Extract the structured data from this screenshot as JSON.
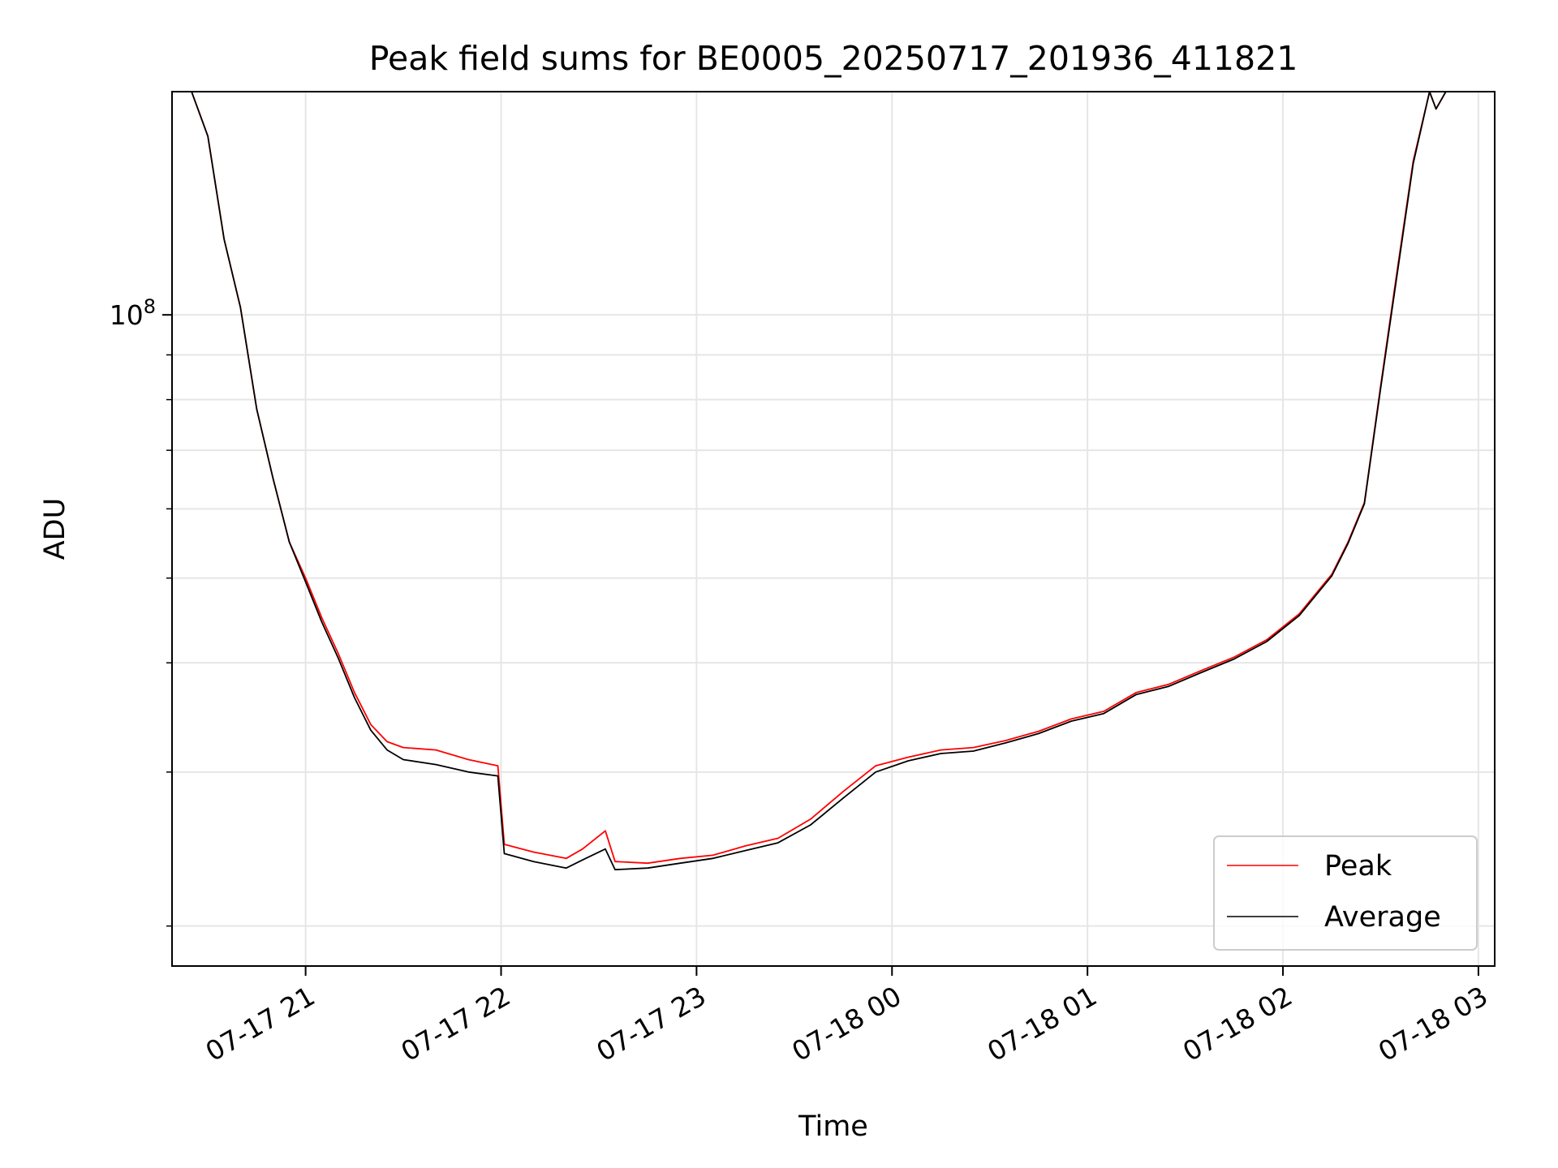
{
  "chart_data": {
    "type": "line",
    "title": "Peak field sums for BE0005_20250717_201936_411821",
    "xlabel": "Time",
    "ylabel": "ADU",
    "yscale": "log",
    "ylim": [
      18000000,
      180000000
    ],
    "yticks_major": [
      {
        "value": 100000000,
        "base": "10",
        "exp": "8"
      }
    ],
    "xlim": [
      "2025-07-17 20:19",
      "2025-07-18 03:05"
    ],
    "xticks": [
      {
        "value": "2025-07-17 21:00",
        "label": "07-17 21"
      },
      {
        "value": "2025-07-17 22:00",
        "label": "07-17 22"
      },
      {
        "value": "2025-07-17 23:00",
        "label": "07-17 23"
      },
      {
        "value": "2025-07-18 00:00",
        "label": "07-18 00"
      },
      {
        "value": "2025-07-18 01:00",
        "label": "07-18 01"
      },
      {
        "value": "2025-07-18 02:00",
        "label": "07-18 02"
      },
      {
        "value": "2025-07-18 03:00",
        "label": "07-18 03"
      }
    ],
    "grid": true,
    "legend_position": "lower-right",
    "series": [
      {
        "name": "Peak",
        "color": "#ff0000",
        "points": [
          [
            "2025-07-17 20:19",
            180000000
          ],
          [
            "2025-07-17 20:25",
            180000000
          ],
          [
            "2025-07-17 20:30",
            160000000
          ],
          [
            "2025-07-17 20:35",
            122000000
          ],
          [
            "2025-07-17 20:40",
            102000000
          ],
          [
            "2025-07-17 20:45",
            78000000
          ],
          [
            "2025-07-17 20:50",
            65000000
          ],
          [
            "2025-07-17 20:55",
            55000000
          ],
          [
            "2025-07-17 21:00",
            50000000
          ],
          [
            "2025-07-17 21:05",
            45000000
          ],
          [
            "2025-07-17 21:10",
            41000000
          ],
          [
            "2025-07-17 21:15",
            37000000
          ],
          [
            "2025-07-17 21:20",
            34000000
          ],
          [
            "2025-07-17 21:25",
            32500000
          ],
          [
            "2025-07-17 21:30",
            32000000
          ],
          [
            "2025-07-17 21:40",
            31800000
          ],
          [
            "2025-07-17 21:50",
            31000000
          ],
          [
            "2025-07-17 21:59",
            30500000
          ],
          [
            "2025-07-17 22:01",
            24800000
          ],
          [
            "2025-07-17 22:10",
            24300000
          ],
          [
            "2025-07-17 22:20",
            23900000
          ],
          [
            "2025-07-17 22:25",
            24500000
          ],
          [
            "2025-07-17 22:32",
            25700000
          ],
          [
            "2025-07-17 22:35",
            23700000
          ],
          [
            "2025-07-17 22:45",
            23600000
          ],
          [
            "2025-07-17 22:55",
            23900000
          ],
          [
            "2025-07-17 23:05",
            24100000
          ],
          [
            "2025-07-17 23:15",
            24700000
          ],
          [
            "2025-07-17 23:25",
            25200000
          ],
          [
            "2025-07-17 23:35",
            26500000
          ],
          [
            "2025-07-17 23:45",
            28500000
          ],
          [
            "2025-07-17 23:55",
            30500000
          ],
          [
            "2025-07-18 00:05",
            31200000
          ],
          [
            "2025-07-18 00:15",
            31800000
          ],
          [
            "2025-07-18 00:25",
            32000000
          ],
          [
            "2025-07-18 00:35",
            32600000
          ],
          [
            "2025-07-18 00:45",
            33400000
          ],
          [
            "2025-07-18 00:55",
            34500000
          ],
          [
            "2025-07-18 01:05",
            35200000
          ],
          [
            "2025-07-18 01:15",
            37000000
          ],
          [
            "2025-07-18 01:25",
            37800000
          ],
          [
            "2025-07-18 01:35",
            39200000
          ],
          [
            "2025-07-18 01:45",
            40600000
          ],
          [
            "2025-07-18 01:55",
            42500000
          ],
          [
            "2025-07-18 02:05",
            45500000
          ],
          [
            "2025-07-18 02:15",
            50500000
          ],
          [
            "2025-07-18 02:20",
            55000000
          ],
          [
            "2025-07-18 02:25",
            61000000
          ],
          [
            "2025-07-18 02:30",
            83000000
          ],
          [
            "2025-07-18 02:35",
            112000000
          ],
          [
            "2025-07-18 02:40",
            150000000
          ],
          [
            "2025-07-18 02:45",
            180000000
          ],
          [
            "2025-07-18 02:47",
            172000000
          ],
          [
            "2025-07-18 02:50",
            180000000
          ],
          [
            "2025-07-18 03:05",
            180000000
          ]
        ]
      },
      {
        "name": "Average",
        "color": "#000000",
        "points": [
          [
            "2025-07-17 20:19",
            180000000
          ],
          [
            "2025-07-17 20:25",
            180000000
          ],
          [
            "2025-07-17 20:30",
            160000000
          ],
          [
            "2025-07-17 20:35",
            122000000
          ],
          [
            "2025-07-17 20:40",
            102000000
          ],
          [
            "2025-07-17 20:45",
            78000000
          ],
          [
            "2025-07-17 20:50",
            65000000
          ],
          [
            "2025-07-17 20:55",
            55000000
          ],
          [
            "2025-07-17 21:00",
            49500000
          ],
          [
            "2025-07-17 21:05",
            44500000
          ],
          [
            "2025-07-17 21:10",
            40500000
          ],
          [
            "2025-07-17 21:15",
            36500000
          ],
          [
            "2025-07-17 21:20",
            33500000
          ],
          [
            "2025-07-17 21:25",
            31800000
          ],
          [
            "2025-07-17 21:30",
            31000000
          ],
          [
            "2025-07-17 21:40",
            30600000
          ],
          [
            "2025-07-17 21:50",
            30000000
          ],
          [
            "2025-07-17 21:59",
            29700000
          ],
          [
            "2025-07-17 22:01",
            24200000
          ],
          [
            "2025-07-17 22:10",
            23700000
          ],
          [
            "2025-07-17 22:20",
            23300000
          ],
          [
            "2025-07-17 22:25",
            23800000
          ],
          [
            "2025-07-17 22:32",
            24500000
          ],
          [
            "2025-07-17 22:35",
            23200000
          ],
          [
            "2025-07-17 22:45",
            23300000
          ],
          [
            "2025-07-17 22:55",
            23600000
          ],
          [
            "2025-07-17 23:05",
            23900000
          ],
          [
            "2025-07-17 23:15",
            24400000
          ],
          [
            "2025-07-17 23:25",
            24900000
          ],
          [
            "2025-07-17 23:35",
            26100000
          ],
          [
            "2025-07-17 23:45",
            28000000
          ],
          [
            "2025-07-17 23:55",
            30000000
          ],
          [
            "2025-07-18 00:05",
            30900000
          ],
          [
            "2025-07-18 00:15",
            31500000
          ],
          [
            "2025-07-18 00:25",
            31700000
          ],
          [
            "2025-07-18 00:35",
            32400000
          ],
          [
            "2025-07-18 00:45",
            33200000
          ],
          [
            "2025-07-18 00:55",
            34300000
          ],
          [
            "2025-07-18 01:05",
            35000000
          ],
          [
            "2025-07-18 01:15",
            36800000
          ],
          [
            "2025-07-18 01:25",
            37600000
          ],
          [
            "2025-07-18 01:35",
            39000000
          ],
          [
            "2025-07-18 01:45",
            40400000
          ],
          [
            "2025-07-18 01:55",
            42300000
          ],
          [
            "2025-07-18 02:05",
            45300000
          ],
          [
            "2025-07-18 02:15",
            50300000
          ],
          [
            "2025-07-18 02:20",
            54800000
          ],
          [
            "2025-07-18 02:25",
            60800000
          ],
          [
            "2025-07-18 02:30",
            82500000
          ],
          [
            "2025-07-18 02:35",
            111000000
          ],
          [
            "2025-07-18 02:40",
            149000000
          ],
          [
            "2025-07-18 02:45",
            180000000
          ],
          [
            "2025-07-18 02:47",
            172000000
          ],
          [
            "2025-07-18 02:50",
            180000000
          ],
          [
            "2025-07-18 03:05",
            180000000
          ]
        ]
      }
    ]
  }
}
